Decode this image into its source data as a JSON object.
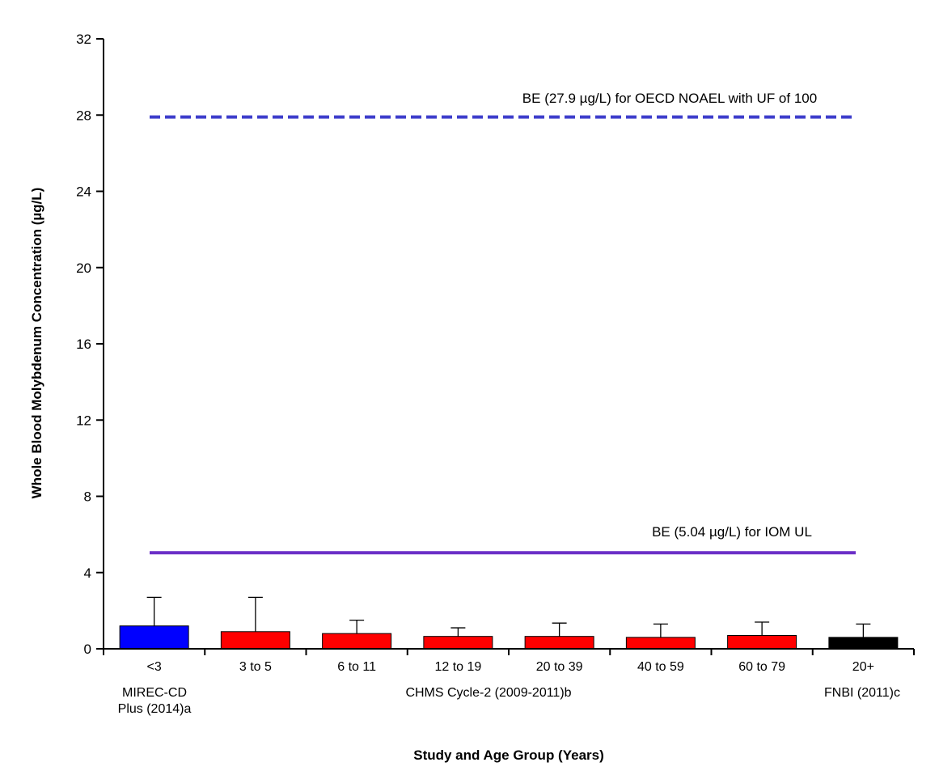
{
  "chart_data": {
    "type": "bar",
    "title": "",
    "xlabel": "Study and Age Group (Years)",
    "ylabel": "Whole Blood Molybdenum Concentration (µg/L)",
    "ylim": [
      0,
      32
    ],
    "yticks": [
      0,
      4,
      8,
      12,
      16,
      20,
      24,
      28,
      32
    ],
    "grid": false,
    "legend": "none",
    "categories": [
      "<3",
      "3 to 5",
      "6 to 11",
      "12 to 19",
      "20 to 39",
      "40 to 59",
      "60 to 79",
      "20+"
    ],
    "values": [
      1.2,
      0.9,
      0.8,
      0.65,
      0.65,
      0.6,
      0.7,
      0.6
    ],
    "error_upper": [
      2.7,
      2.7,
      1.5,
      1.1,
      1.35,
      1.3,
      1.4,
      1.3
    ],
    "bar_colors": [
      "#0000FF",
      "#FF0000",
      "#FF0000",
      "#FF0000",
      "#FF0000",
      "#FF0000",
      "#FF0000",
      "#000000"
    ],
    "studies": [
      {
        "lines": [
          "MIREC-CD",
          "Plus (2014)a"
        ],
        "categories": [
          "<3"
        ]
      },
      {
        "lines": [
          "CHMS Cycle-2 (2009-2011)b"
        ],
        "categories": [
          "3 to 5",
          "6 to 11",
          "12 to 19",
          "20 to 39",
          "40 to 59",
          "60 to 79"
        ]
      },
      {
        "lines": [
          "FNBI (2011)c"
        ],
        "categories": [
          "20+"
        ]
      }
    ],
    "reference_lines": [
      {
        "value": 27.9,
        "label": "BE (27.9 µg/L) for OECD NOAEL with UF of 100",
        "style": "dashed",
        "color": "#3D3DCB"
      },
      {
        "value": 5.04,
        "label": "BE (5.04 µg/L) for IOM UL",
        "style": "solid",
        "color": "#6B2FC7"
      }
    ],
    "axis_color": "#000000",
    "error_bar_color": "#000000"
  }
}
